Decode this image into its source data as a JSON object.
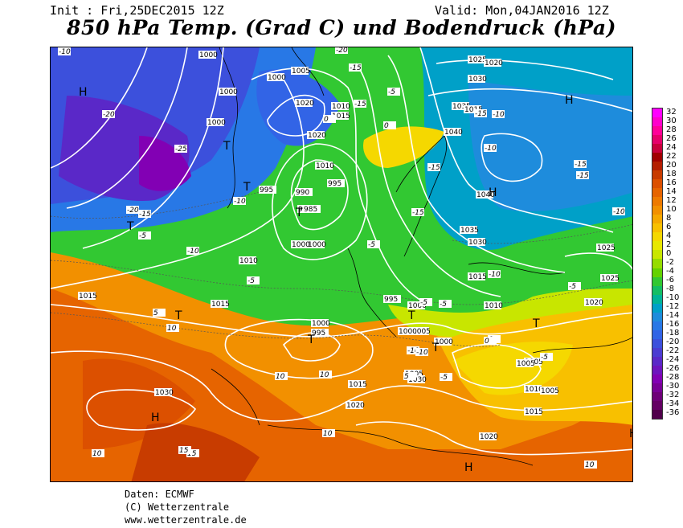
{
  "header": {
    "init": "Init : Fri,25DEC2015 12Z",
    "valid": "Valid: Mon,04JAN2016 12Z",
    "title": "850 hPa Temp. (Grad C) und Bodendruck (hPa)"
  },
  "legend": {
    "values": [
      "32",
      "30",
      "28",
      "26",
      "24",
      "22",
      "20",
      "18",
      "16",
      "14",
      "12",
      "10",
      "8",
      "6",
      "4",
      "2",
      "0",
      "-2",
      "-4",
      "-6",
      "-8",
      "-10",
      "-12",
      "-14",
      "-16",
      "-18",
      "-20",
      "-22",
      "-24",
      "-26",
      "-28",
      "-30",
      "-32",
      "-34",
      "-36"
    ],
    "colors": [
      "#ff00ff",
      "#ff00cc",
      "#ff0099",
      "#e6006b",
      "#c8003c",
      "#a00000",
      "#b41e00",
      "#c83c00",
      "#dc5000",
      "#e66400",
      "#ee7a00",
      "#f29000",
      "#f5a800",
      "#f8c000",
      "#f5d800",
      "#e8e800",
      "#c8e600",
      "#96dc00",
      "#64d200",
      "#32c832",
      "#14be64",
      "#00b496",
      "#00a0c8",
      "#1e8cdc",
      "#2878e6",
      "#3264e6",
      "#3c50dc",
      "#4b3cd2",
      "#5a28c8",
      "#6e14be",
      "#8200b4",
      "#780096",
      "#6e0078",
      "#640064",
      "#50004b"
    ]
  },
  "map": {
    "pressure_labels": [
      "1000",
      "1000",
      "1005",
      "1000",
      "1000",
      "1020",
      "1010",
      "1015",
      "1020",
      "1010",
      "1025",
      "1020",
      "1030",
      "1035",
      "1040",
      "1040",
      "1035",
      "1030",
      "1025",
      "1025",
      "1020",
      "995",
      "990",
      "985",
      "1000",
      "995",
      "1000",
      "1005",
      "1010",
      "1015",
      "1015",
      "1000",
      "995",
      "1000",
      "1000",
      "1005",
      "1015",
      "1020",
      "1030",
      "1010",
      "1015",
      "1020",
      "1005",
      "1025",
      "1015",
      "1010",
      "1005",
      "995",
      "985",
      "1000",
      "1005",
      "1030",
      "1035",
      "1015"
    ],
    "temp_labels": [
      "-10",
      "-20",
      "-25",
      "-20",
      "-15",
      "-5",
      "-10",
      "-5",
      "0",
      "5",
      "10",
      "10",
      "-20",
      "-15",
      "-15",
      "-5",
      "-10",
      "-15",
      "-15",
      "-5",
      "0",
      "5",
      "10",
      "15",
      "10",
      "-10",
      "-10",
      "-5",
      "0",
      "-15",
      "-15",
      "-10",
      "-10",
      "-15",
      "-5",
      "-10",
      "10",
      "15",
      "10",
      "-10",
      "-5",
      "-5",
      "-5",
      "10",
      "5",
      "0"
    ],
    "high_labels": [
      "H",
      "H",
      "H",
      "H",
      "H",
      "H"
    ],
    "low_labels": [
      "T",
      "T",
      "T",
      "T",
      "T",
      "T",
      "T",
      "T",
      "T"
    ]
  },
  "credits": {
    "line1": "Daten: ECMWF",
    "line2": "(C) Wetterzentrale",
    "line3": "www.wetterzentrale.de"
  }
}
